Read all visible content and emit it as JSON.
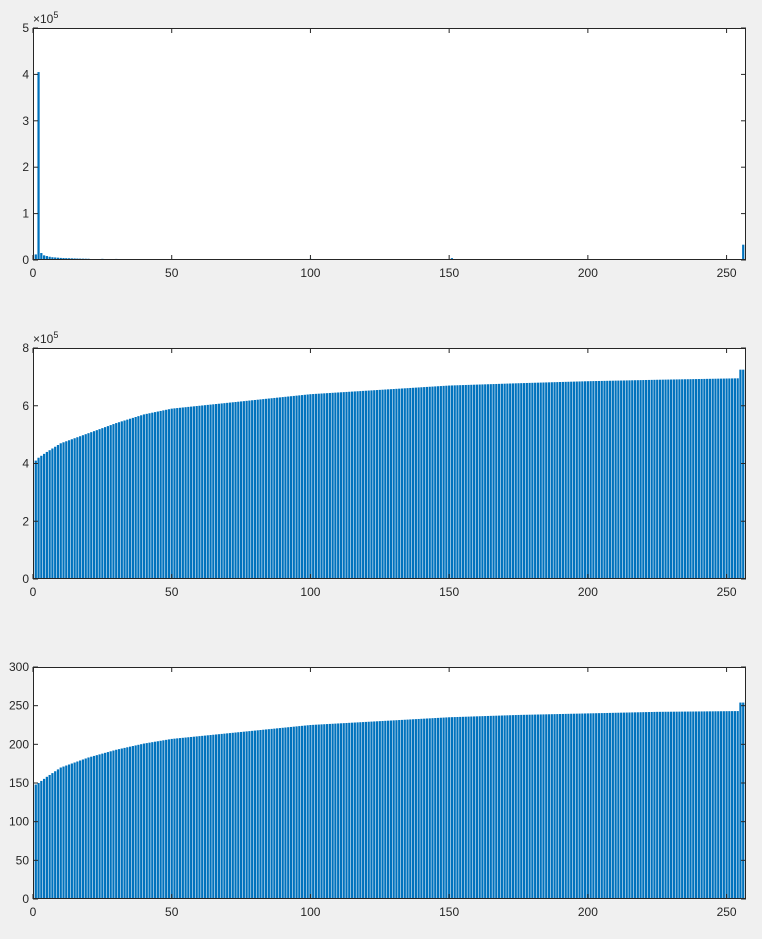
{
  "figure": {
    "background": "#f0f0f0"
  },
  "chart_data": [
    {
      "type": "bar",
      "xlim": [
        0,
        257
      ],
      "ylim": [
        0,
        500000
      ],
      "xticks": [
        0,
        50,
        100,
        150,
        200,
        250
      ],
      "yticks": [
        0,
        100000,
        200000,
        300000,
        400000,
        500000
      ],
      "ytick_labels": [
        "0",
        "1",
        "2",
        "3",
        "4",
        "5"
      ],
      "exponent_label": {
        "base": "×10",
        "power": "5"
      },
      "bar_color": "#0072bd",
      "grid": false,
      "x": [
        1,
        2,
        3,
        4,
        5,
        6,
        7,
        8,
        9,
        10,
        11,
        12,
        13,
        14,
        15,
        16,
        17,
        18,
        19,
        20,
        25,
        30,
        35,
        40,
        45,
        50,
        60,
        70,
        80,
        90,
        100,
        110,
        120,
        130,
        140,
        150,
        151,
        152,
        200,
        255,
        256
      ],
      "values": [
        12000,
        405000,
        15000,
        10000,
        8500,
        7000,
        6000,
        5500,
        5000,
        4500,
        4200,
        4000,
        3800,
        3600,
        3400,
        3200,
        3000,
        2900,
        2800,
        2700,
        2500,
        2300,
        2100,
        2000,
        1900,
        1800,
        1600,
        1500,
        1400,
        1300,
        2500,
        1200,
        1100,
        1000,
        950,
        900,
        4000,
        2000,
        600,
        2000,
        33000
      ]
    },
    {
      "type": "bar",
      "xlim": [
        0,
        257
      ],
      "ylim": [
        0,
        800000
      ],
      "xticks": [
        0,
        50,
        100,
        150,
        200,
        250
      ],
      "yticks": [
        0,
        200000,
        400000,
        600000,
        800000
      ],
      "ytick_labels": [
        "0",
        "2",
        "4",
        "6",
        "8"
      ],
      "exponent_label": {
        "base": "×10",
        "power": "5"
      },
      "bar_color": "#0072bd",
      "grid": false,
      "x_range": [
        1,
        256
      ],
      "values_sampled": {
        "1": 410000,
        "2": 420000,
        "5": 440000,
        "10": 470000,
        "20": 505000,
        "30": 540000,
        "40": 570000,
        "50": 590000,
        "75": 615000,
        "100": 640000,
        "125": 655000,
        "150": 670000,
        "175": 678000,
        "200": 685000,
        "225": 690000,
        "254": 695000,
        "255": 725000,
        "256": 725000
      }
    },
    {
      "type": "bar",
      "xlim": [
        0,
        257
      ],
      "ylim": [
        0,
        300
      ],
      "xticks": [
        0,
        50,
        100,
        150,
        200,
        250
      ],
      "yticks": [
        0,
        50,
        100,
        150,
        200,
        250,
        300
      ],
      "ytick_labels": [
        "0",
        "50",
        "100",
        "150",
        "200",
        "250",
        "300"
      ],
      "bar_color": "#0072bd",
      "grid": false,
      "x_range": [
        1,
        256
      ],
      "values_sampled": {
        "1": 148,
        "2": 150,
        "5": 158,
        "10": 170,
        "20": 183,
        "30": 193,
        "40": 201,
        "50": 207,
        "75": 216,
        "100": 225,
        "125": 230,
        "150": 235,
        "175": 238,
        "200": 240,
        "225": 242,
        "254": 243,
        "255": 254,
        "256": 254
      }
    }
  ]
}
